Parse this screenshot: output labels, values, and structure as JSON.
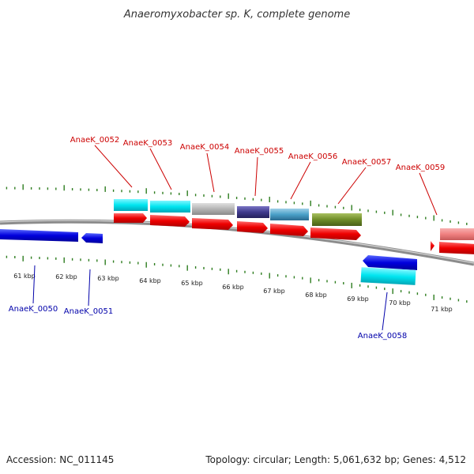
{
  "title": "Anaeromyxobacter sp. K, complete genome",
  "footer": {
    "accession": "Accession: NC_011145",
    "stats": "Topology: circular; Length: 5,061,632 bp; Genes: 4,512"
  },
  "colors": {
    "forward_label": "#cc0000",
    "reverse_label": "#0000aa",
    "ticks": "#2e7d1f",
    "backbone": "#8c8c8c",
    "cds_forward": "#ee0000",
    "cds_reverse": "#0000dd",
    "cyan": "#00e5f0",
    "grey": "#b4b4b4",
    "navy": "#3f3a8c",
    "steel": "#4aa0c8",
    "olive": "#6e8c28",
    "pink": "#f08080"
  },
  "scale_labels": [
    "61 kbp",
    "62 kbp",
    "63 kbp",
    "64 kbp",
    "65 kbp",
    "66 kbp",
    "67 kbp",
    "68 kbp",
    "69 kbp",
    "70 kbp",
    "71 kbp"
  ],
  "forward_genes": [
    "AnaeK_0052",
    "AnaeK_0053",
    "AnaeK_0054",
    "AnaeK_0055",
    "AnaeK_0056",
    "AnaeK_0057",
    "AnaeK_0059"
  ],
  "reverse_genes": [
    "AnaeK_0050",
    "AnaeK_0051",
    "AnaeK_0058"
  ]
}
